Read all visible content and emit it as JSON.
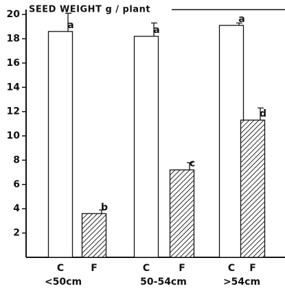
{
  "chart_data": {
    "type": "bar",
    "title": "SEED WEIGHT g / plant",
    "categories": [
      "<50cm",
      "50-54cm",
      ">54cm"
    ],
    "series": [
      {
        "name": "C",
        "color": "#ffffff",
        "hatch": false,
        "values": [
          18.6,
          18.2,
          19.1
        ],
        "errors": [
          1.5,
          1.1,
          0.2
        ],
        "labels": [
          "a",
          "a",
          "a"
        ]
      },
      {
        "name": "F",
        "color": "#000000",
        "hatch": true,
        "values": [
          3.6,
          7.2,
          11.3
        ],
        "errors": [
          0.3,
          0.6,
          1.0
        ],
        "labels": [
          "b",
          "c",
          "d"
        ]
      }
    ],
    "ylim": [
      0,
      20.4
    ],
    "yticks": [
      2,
      4,
      6,
      8,
      10,
      12,
      14,
      16,
      18,
      20
    ]
  }
}
